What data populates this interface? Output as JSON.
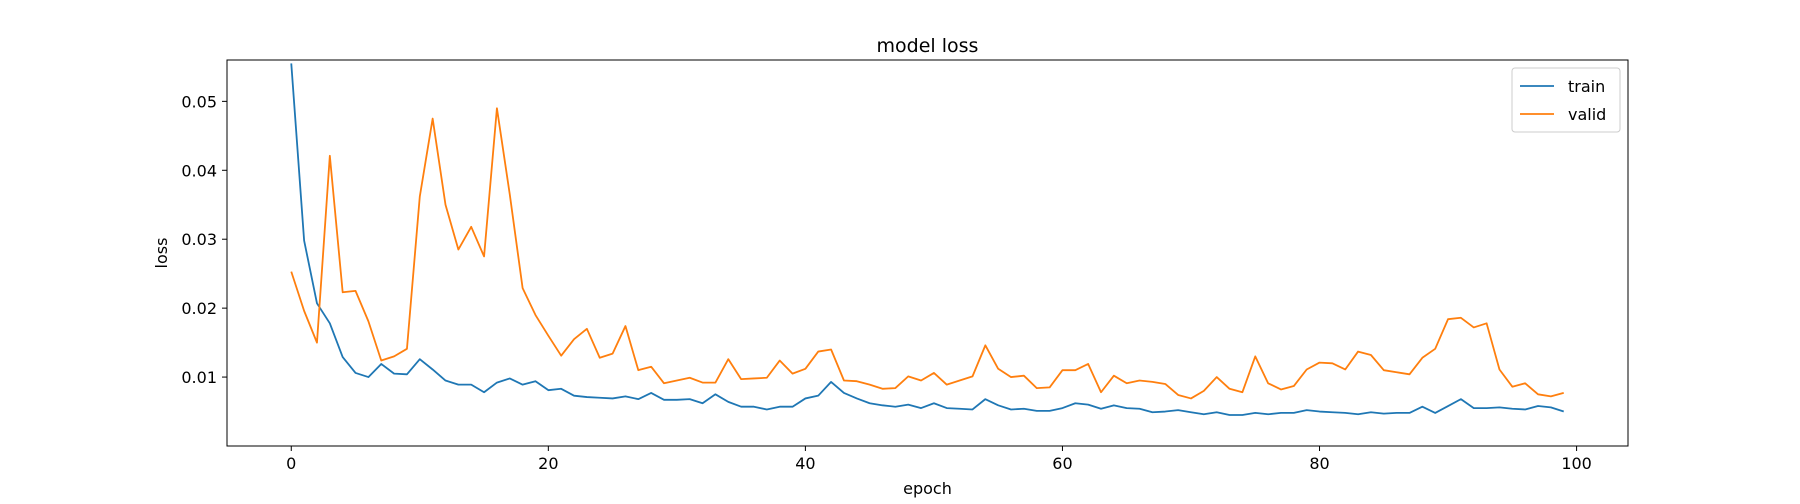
{
  "chart_data": {
    "type": "line",
    "title": "model loss",
    "xlabel": "epoch",
    "ylabel": "loss",
    "xlim": [
      -5,
      104
    ],
    "ylim": [
      0.0,
      0.056
    ],
    "xticks": [
      0,
      20,
      40,
      60,
      80,
      100
    ],
    "xtick_labels": [
      "0",
      "20",
      "40",
      "60",
      "80",
      "100"
    ],
    "yticks": [
      0.01,
      0.02,
      0.03,
      0.04,
      0.05
    ],
    "ytick_labels": [
      "0.01",
      "0.02",
      "0.03",
      "0.04",
      "0.05"
    ],
    "grid": false,
    "legend_position": "top-right",
    "series": [
      {
        "name": "train",
        "color": "#1f77b4",
        "x": [
          0,
          1,
          2,
          3,
          4,
          5,
          6,
          7,
          8,
          9,
          10,
          11,
          12,
          13,
          14,
          15,
          16,
          17,
          18,
          19,
          20,
          21,
          22,
          23,
          24,
          25,
          26,
          27,
          28,
          29,
          30,
          31,
          32,
          33,
          34,
          35,
          36,
          37,
          38,
          39,
          40,
          41,
          42,
          43,
          44,
          45,
          46,
          47,
          48,
          49,
          50,
          51,
          52,
          53,
          54,
          55,
          56,
          57,
          58,
          59,
          60,
          61,
          62,
          63,
          64,
          65,
          66,
          67,
          68,
          69,
          70,
          71,
          72,
          73,
          74,
          75,
          76,
          77,
          78,
          79,
          80,
          81,
          82,
          83,
          84,
          85,
          86,
          87,
          88,
          89,
          90,
          91,
          92,
          93,
          94,
          95,
          96,
          97,
          98,
          99
        ],
        "values": [
          0.0555,
          0.0298,
          0.0207,
          0.0178,
          0.0129,
          0.0106,
          0.01,
          0.0119,
          0.0105,
          0.0104,
          0.0126,
          0.0111,
          0.0095,
          0.0089,
          0.0089,
          0.0078,
          0.0092,
          0.0098,
          0.0089,
          0.0094,
          0.0081,
          0.0083,
          0.0073,
          0.0071,
          0.007,
          0.0069,
          0.0072,
          0.0068,
          0.0077,
          0.0067,
          0.0067,
          0.0068,
          0.0062,
          0.0075,
          0.0064,
          0.0057,
          0.0057,
          0.0053,
          0.0057,
          0.0057,
          0.0069,
          0.0073,
          0.0093,
          0.0077,
          0.0069,
          0.0062,
          0.0059,
          0.0057,
          0.006,
          0.0055,
          0.0062,
          0.0055,
          0.0054,
          0.0053,
          0.0068,
          0.0059,
          0.0053,
          0.0054,
          0.0051,
          0.0051,
          0.0055,
          0.0062,
          0.006,
          0.0054,
          0.0059,
          0.0055,
          0.0054,
          0.0049,
          0.005,
          0.0052,
          0.0049,
          0.0046,
          0.0049,
          0.0045,
          0.0045,
          0.0048,
          0.0046,
          0.0048,
          0.0048,
          0.0052,
          0.005,
          0.0049,
          0.0048,
          0.0046,
          0.0049,
          0.0047,
          0.0048,
          0.0048,
          0.0057,
          0.0048,
          0.0058,
          0.0068,
          0.0055,
          0.0055,
          0.0056,
          0.0054,
          0.0053,
          0.0058,
          0.0056,
          0.005
        ]
      },
      {
        "name": "valid",
        "color": "#ff7f0e",
        "x": [
          0,
          1,
          2,
          3,
          4,
          5,
          6,
          7,
          8,
          9,
          10,
          11,
          12,
          13,
          14,
          15,
          16,
          17,
          18,
          19,
          20,
          21,
          22,
          23,
          24,
          25,
          26,
          27,
          28,
          29,
          30,
          31,
          32,
          33,
          34,
          35,
          36,
          37,
          38,
          39,
          40,
          41,
          42,
          43,
          44,
          45,
          46,
          47,
          48,
          49,
          50,
          51,
          52,
          53,
          54,
          55,
          56,
          57,
          58,
          59,
          60,
          61,
          62,
          63,
          64,
          65,
          66,
          67,
          68,
          69,
          70,
          71,
          72,
          73,
          74,
          75,
          76,
          77,
          78,
          79,
          80,
          81,
          82,
          83,
          84,
          85,
          86,
          87,
          88,
          89,
          90,
          91,
          92,
          93,
          94,
          95,
          96,
          97,
          98,
          99
        ],
        "values": [
          0.0253,
          0.0196,
          0.015,
          0.0421,
          0.0223,
          0.0225,
          0.0181,
          0.0124,
          0.013,
          0.0141,
          0.0362,
          0.0475,
          0.035,
          0.0285,
          0.0318,
          0.0275,
          0.049,
          0.0365,
          0.0229,
          0.019,
          0.016,
          0.0131,
          0.0155,
          0.017,
          0.0128,
          0.0134,
          0.0174,
          0.011,
          0.0115,
          0.0091,
          0.0095,
          0.0099,
          0.0092,
          0.0092,
          0.0126,
          0.0097,
          0.0098,
          0.0099,
          0.0124,
          0.0105,
          0.0112,
          0.0137,
          0.014,
          0.0095,
          0.0094,
          0.0089,
          0.0083,
          0.0084,
          0.0101,
          0.0095,
          0.0106,
          0.0089,
          0.0095,
          0.0101,
          0.0146,
          0.0112,
          0.01,
          0.0102,
          0.0084,
          0.0085,
          0.011,
          0.011,
          0.0119,
          0.0078,
          0.0102,
          0.0091,
          0.0095,
          0.0093,
          0.009,
          0.0074,
          0.0069,
          0.008,
          0.01,
          0.0083,
          0.0078,
          0.013,
          0.0091,
          0.0082,
          0.0087,
          0.0111,
          0.0121,
          0.012,
          0.0111,
          0.0137,
          0.0132,
          0.011,
          0.0107,
          0.0104,
          0.0128,
          0.0141,
          0.0184,
          0.0186,
          0.0172,
          0.0178,
          0.0111,
          0.0086,
          0.0091,
          0.0075,
          0.0072,
          0.0077
        ]
      }
    ]
  }
}
